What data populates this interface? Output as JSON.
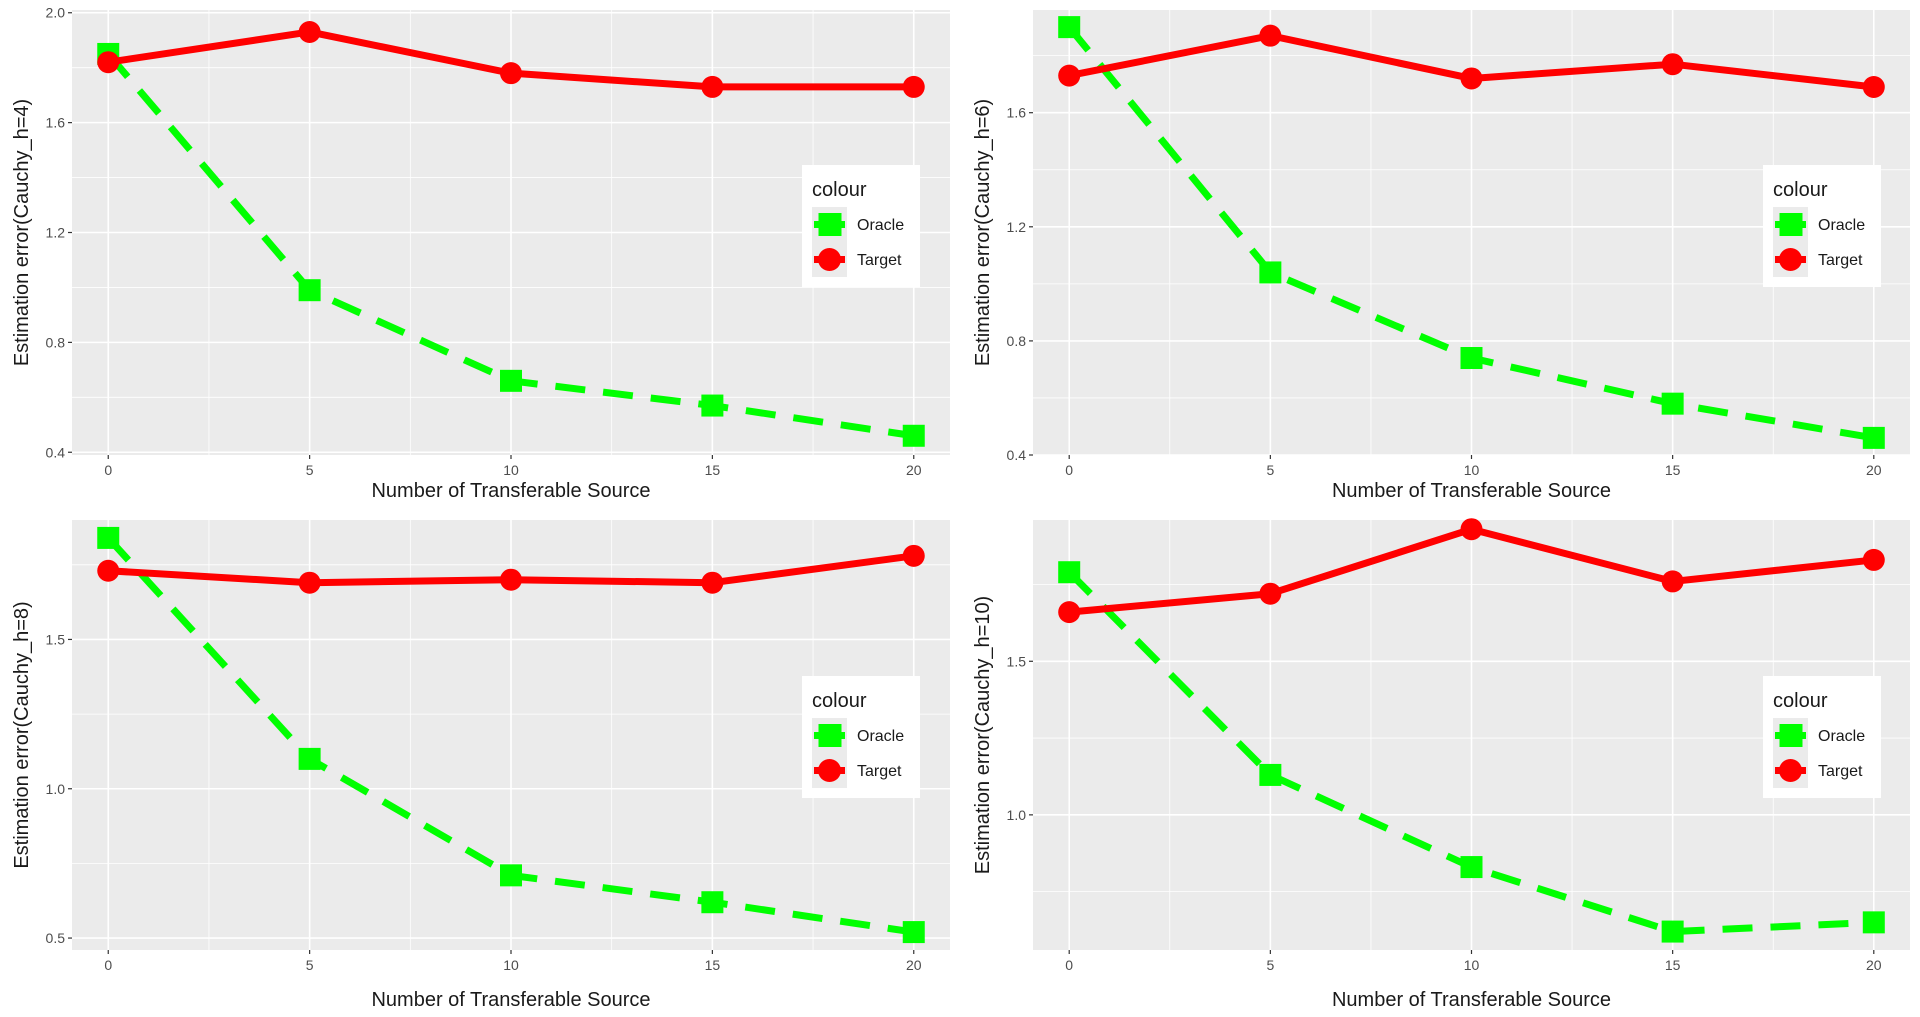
{
  "colors": {
    "panel_bg": "#EBEBEB",
    "grid": "#FFFFFF",
    "oracle": "#00FF00",
    "target": "#FF0000",
    "text": "#1A1A1A",
    "tick_text": "#4D4D4D"
  },
  "chart_data": [
    {
      "type": "line",
      "title": "",
      "xlabel": "Number of Transferable Source",
      "ylabel": "Estimation error(Cauchy_h=4)",
      "x": [
        0,
        5,
        10,
        15,
        20
      ],
      "xticks": [
        0,
        5,
        10,
        15,
        20
      ],
      "xlim": [
        -0.9,
        20.9
      ],
      "yticks": [
        0.4,
        0.8,
        1.2,
        1.6,
        2.0
      ],
      "ytick_labels": [
        "0.4",
        "0.8",
        "1.2",
        "1.6",
        "2.0"
      ],
      "ylim": [
        0.39,
        2.01
      ],
      "legend": {
        "title": "colour",
        "position": "right",
        "entries": [
          "Oracle",
          "Target"
        ]
      },
      "series": [
        {
          "name": "Oracle",
          "values": [
            1.85,
            0.99,
            0.66,
            0.57,
            0.46
          ],
          "style": "dashed",
          "marker": "square"
        },
        {
          "name": "Target",
          "values": [
            1.82,
            1.93,
            1.78,
            1.73,
            1.73
          ],
          "style": "solid",
          "marker": "circle"
        }
      ]
    },
    {
      "type": "line",
      "title": "",
      "xlabel": "Number of Transferable Source",
      "ylabel": "Estimation error(Cauchy_h=6)",
      "x": [
        0,
        5,
        10,
        15,
        20
      ],
      "xticks": [
        0,
        5,
        10,
        15,
        20
      ],
      "xlim": [
        -0.9,
        20.9
      ],
      "yticks": [
        0.4,
        0.8,
        1.2,
        1.6
      ],
      "ytick_labels": [
        "0.4",
        "0.8",
        "1.2",
        "1.6"
      ],
      "ylim": [
        0.4,
        1.96
      ],
      "legend": {
        "title": "colour",
        "position": "right",
        "entries": [
          "Oracle",
          "Target"
        ]
      },
      "series": [
        {
          "name": "Oracle",
          "values": [
            1.9,
            1.04,
            0.74,
            0.58,
            0.46
          ],
          "style": "dashed",
          "marker": "square"
        },
        {
          "name": "Target",
          "values": [
            1.73,
            1.87,
            1.72,
            1.77,
            1.69
          ],
          "style": "solid",
          "marker": "circle"
        }
      ]
    },
    {
      "type": "line",
      "title": "",
      "xlabel": "Number of Transferable Source",
      "ylabel": "Estimation error(Cauchy_h=8)",
      "x": [
        0,
        5,
        10,
        15,
        20
      ],
      "xticks": [
        0,
        5,
        10,
        15,
        20
      ],
      "xlim": [
        -0.9,
        20.9
      ],
      "yticks": [
        0.5,
        1.0,
        1.5
      ],
      "ytick_labels": [
        "0.5",
        "1.0",
        "1.5"
      ],
      "ylim": [
        0.46,
        1.9
      ],
      "legend": {
        "title": "colour",
        "position": "right",
        "entries": [
          "Oracle",
          "Target"
        ]
      },
      "series": [
        {
          "name": "Oracle",
          "values": [
            1.84,
            1.1,
            0.71,
            0.62,
            0.52
          ],
          "style": "dashed",
          "marker": "square"
        },
        {
          "name": "Target",
          "values": [
            1.73,
            1.69,
            1.7,
            1.69,
            1.78
          ],
          "style": "solid",
          "marker": "circle"
        }
      ]
    },
    {
      "type": "line",
      "title": "",
      "xlabel": "Number of Transferable Source",
      "ylabel": "Estimation error(Cauchy_h=10)",
      "x": [
        0,
        5,
        10,
        15,
        20
      ],
      "xticks": [
        0,
        5,
        10,
        15,
        20
      ],
      "xlim": [
        -0.9,
        20.9
      ],
      "yticks": [
        1.0,
        1.5
      ],
      "ytick_labels": [
        "1.0",
        "1.5"
      ],
      "ylim": [
        0.56,
        1.96
      ],
      "legend": {
        "title": "colour",
        "position": "right",
        "entries": [
          "Oracle",
          "Target"
        ]
      },
      "series": [
        {
          "name": "Oracle",
          "values": [
            1.79,
            1.13,
            0.83,
            0.62,
            0.65
          ],
          "style": "dashed",
          "marker": "square"
        },
        {
          "name": "Target",
          "values": [
            1.66,
            1.72,
            1.93,
            1.76,
            1.83
          ],
          "style": "solid",
          "marker": "circle"
        }
      ]
    }
  ]
}
